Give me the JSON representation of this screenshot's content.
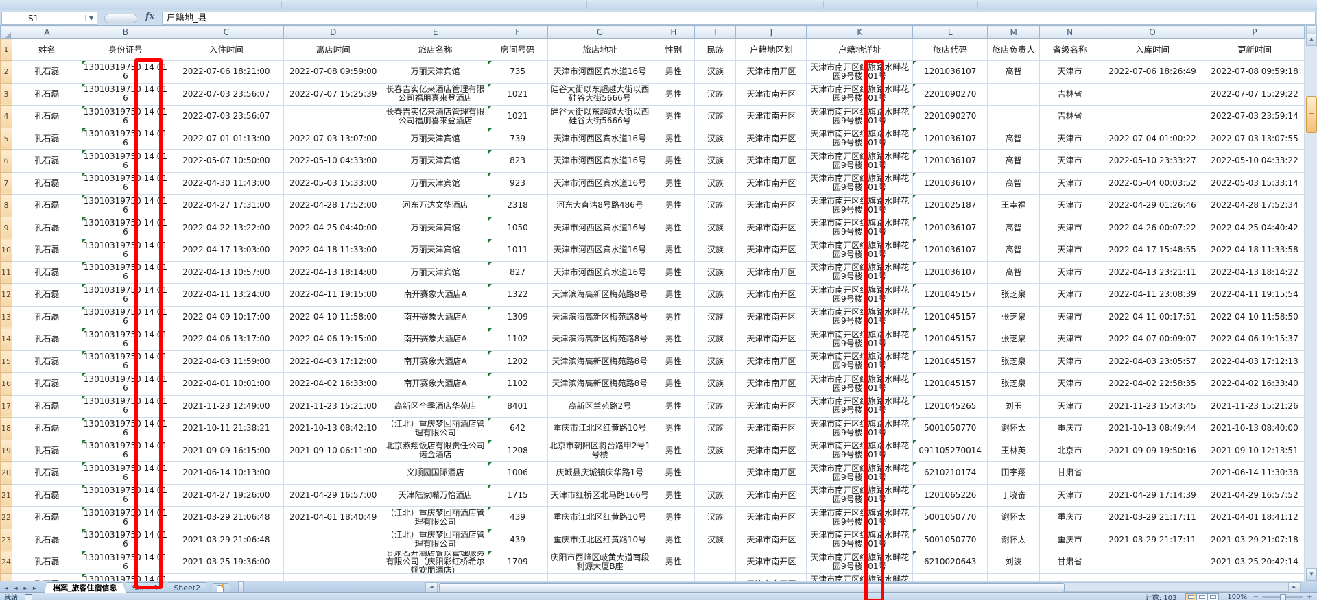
{
  "chrome": {
    "name_box": "S1",
    "fx_label": "fx",
    "formula_value": "户籍地_县"
  },
  "grid": {
    "column_letters": [
      "A",
      "B",
      "C",
      "D",
      "E",
      "F",
      "G",
      "H",
      "I",
      "J",
      "K",
      "L",
      "M",
      "N",
      "O",
      "P"
    ],
    "field_headers": [
      "姓名",
      "身份证号",
      "入住时间",
      "离店时间",
      "旅店名称",
      "房间号码",
      "旅店地址",
      "性别",
      "民族",
      "户籍地区划",
      "户籍地详址",
      "旅店代码",
      "旅店负责人",
      "省级名称",
      "入库时间",
      "更新时间"
    ],
    "first_data_row_number": 2,
    "error_indicator_columns": [
      1,
      5,
      11
    ],
    "rows": [
      [
        "孔石磊",
        "13010319750 14 016",
        "2022-07-06 18:21:00",
        "2022-07-08 09:59:00",
        "万丽天津宾馆",
        "735",
        "天津市河西区宾水道16号",
        "男性",
        "汉族",
        "天津市南开区",
        "天津市南开区红旗路水畔花园9号楼101号",
        "1201036107",
        "高智",
        "天津市",
        "2022-07-06 18:26:49",
        "2022-07-08 09:59:18"
      ],
      [
        "孔石磊",
        "13010319750 14 016",
        "2022-07-03 23:56:07",
        "2022-07-07 15:25:39",
        "长春吉实亿来酒店管理有限公司福朋喜来登酒店",
        "1021",
        "硅谷大街以东超越大街以西硅谷大街5666号",
        "男性",
        "汉族",
        "天津市南开区",
        "天津市南开区红旗路水畔花园9号楼101号",
        "2201090270",
        "",
        "吉林省",
        "",
        "2022-07-07 15:29:22"
      ],
      [
        "孔石磊",
        "13010319750 14 016",
        "2022-07-03 23:56:07",
        "",
        "长春吉实亿来酒店管理有限公司福朋喜来登酒店",
        "1021",
        "硅谷大街以东超越大街以西硅谷大街5666号",
        "男性",
        "汉族",
        "天津市南开区",
        "天津市南开区红旗路水畔花园9号楼101号",
        "2201090270",
        "",
        "吉林省",
        "",
        "2022-07-03 23:59:14"
      ],
      [
        "孔石磊",
        "13010319750 14 016",
        "2022-07-01 01:13:00",
        "2022-07-03 13:07:00",
        "万丽天津宾馆",
        "739",
        "天津市河西区宾水道16号",
        "男性",
        "汉族",
        "天津市南开区",
        "天津市南开区红旗路水畔花园9号楼101号",
        "1201036107",
        "高智",
        "天津市",
        "2022-07-04 01:00:22",
        "2022-07-03 13:07:55"
      ],
      [
        "孔石磊",
        "13010319750 14 016",
        "2022-05-07 10:50:00",
        "2022-05-10 04:33:00",
        "万丽天津宾馆",
        "823",
        "天津市河西区宾水道16号",
        "男性",
        "汉族",
        "天津市南开区",
        "天津市南开区红旗路水畔花园9号楼101号",
        "1201036107",
        "高智",
        "天津市",
        "2022-05-10 23:33:27",
        "2022-05-10 04:33:22"
      ],
      [
        "孔石磊",
        "13010319750 14 016",
        "2022-04-30 11:43:00",
        "2022-05-03 15:33:00",
        "万丽天津宾馆",
        "923",
        "天津市河西区宾水道16号",
        "男性",
        "汉族",
        "天津市南开区",
        "天津市南开区红旗路水畔花园9号楼101号",
        "1201036107",
        "高智",
        "天津市",
        "2022-05-04 00:03:52",
        "2022-05-03 15:33:14"
      ],
      [
        "孔石磊",
        "13010319750 14 016",
        "2022-04-27 17:31:00",
        "2022-04-28 17:52:00",
        "河东万达文华酒店",
        "2318",
        "河东大直沽8号路486号",
        "男性",
        "汉族",
        "天津市南开区",
        "天津市南开区红旗路水畔花园9号楼101号",
        "1201025187",
        "王幸福",
        "天津市",
        "2022-04-29 01:26:46",
        "2022-04-28 17:52:34"
      ],
      [
        "孔石磊",
        "13010319750 14 016",
        "2022-04-22 13:22:00",
        "2022-04-25 04:40:00",
        "万丽天津宾馆",
        "1050",
        "天津市河西区宾水道16号",
        "男性",
        "汉族",
        "天津市南开区",
        "天津市南开区红旗路水畔花园9号楼101号",
        "1201036107",
        "高智",
        "天津市",
        "2022-04-26 00:07:22",
        "2022-04-25 04:40:42"
      ],
      [
        "孔石磊",
        "13010319750 14 016",
        "2022-04-17 13:03:00",
        "2022-04-18 11:33:00",
        "万丽天津宾馆",
        "1011",
        "天津市河西区宾水道16号",
        "男性",
        "汉族",
        "天津市南开区",
        "天津市南开区红旗路水畔花园9号楼101号",
        "1201036107",
        "高智",
        "天津市",
        "2022-04-17 15:48:55",
        "2022-04-18 11:33:58"
      ],
      [
        "孔石磊",
        "13010319750 14 016",
        "2022-04-13 10:57:00",
        "2022-04-13 18:14:00",
        "万丽天津宾馆",
        "827",
        "天津市河西区宾水道16号",
        "男性",
        "汉族",
        "天津市南开区",
        "天津市南开区红旗路水畔花园9号楼101号",
        "1201036107",
        "高智",
        "天津市",
        "2022-04-13 23:21:11",
        "2022-04-13 18:14:22"
      ],
      [
        "孔石磊",
        "13010319750 14 016",
        "2022-04-11 13:24:00",
        "2022-04-11 19:15:00",
        "南开赛象大酒店A",
        "1322",
        "天津滨海高新区梅苑路8号",
        "男性",
        "汉族",
        "天津市南开区",
        "天津市南开区红旗路水畔花园9号楼101号",
        "1201045157",
        "张芝泉",
        "天津市",
        "2022-04-11 23:08:39",
        "2022-04-11 19:15:54"
      ],
      [
        "孔石磊",
        "13010319750 14 016",
        "2022-04-09 10:17:00",
        "2022-04-10 11:58:00",
        "南开赛象大酒店A",
        "1309",
        "天津滨海高新区梅苑路8号",
        "男性",
        "汉族",
        "天津市南开区",
        "天津市南开区红旗路水畔花园9号楼101号",
        "1201045157",
        "张芝泉",
        "天津市",
        "2022-04-11 00:17:51",
        "2022-04-10 11:58:50"
      ],
      [
        "孔石磊",
        "13010319750 14 016",
        "2022-04-06 13:17:00",
        "2022-04-06 19:15:00",
        "南开赛象大酒店A",
        "1102",
        "天津滨海高新区梅苑路8号",
        "男性",
        "汉族",
        "天津市南开区",
        "天津市南开区红旗路水畔花园9号楼101号",
        "1201045157",
        "张芝泉",
        "天津市",
        "2022-04-07 00:09:07",
        "2022-04-06 19:15:37"
      ],
      [
        "孔石磊",
        "13010319750 14 016",
        "2022-04-03 11:59:00",
        "2022-04-03 17:12:00",
        "南开赛象大酒店A",
        "1202",
        "天津滨海高新区梅苑路8号",
        "男性",
        "汉族",
        "天津市南开区",
        "天津市南开区红旗路水畔花园9号楼101号",
        "1201045157",
        "张芝泉",
        "天津市",
        "2022-04-03 23:05:57",
        "2022-04-03 17:12:13"
      ],
      [
        "孔石磊",
        "13010319750 14 016",
        "2022-04-01 10:01:00",
        "2022-04-02 16:33:00",
        "南开赛象大酒店A",
        "1102",
        "天津滨海高新区梅苑路8号",
        "男性",
        "汉族",
        "天津市南开区",
        "天津市南开区红旗路水畔花园9号楼101号",
        "1201045157",
        "张芝泉",
        "天津市",
        "2022-04-02 22:58:35",
        "2022-04-02 16:33:40"
      ],
      [
        "孔石磊",
        "13010319750 14 016",
        "2021-11-23 12:49:00",
        "2021-11-23 15:21:00",
        "高新区全季酒店华苑店",
        "8401",
        "高新区兰苑路2号",
        "男性",
        "汉族",
        "天津市南开区",
        "天津市南开区红旗路水畔花园9号楼101号",
        "1201045265",
        "刘玉",
        "天津市",
        "2021-11-23 15:43:45",
        "2021-11-23 15:21:26"
      ],
      [
        "孔石磊",
        "13010319750 14 016",
        "2021-10-11 21:38:21",
        "2021-10-13 08:42:10",
        "（江北）重庆梦回丽酒店管理有限公司",
        "642",
        "重庆市江北区红黄路10号",
        "男性",
        "汉族",
        "天津市南开区",
        "天津市南开区红旗路水畔花园9号楼101号",
        "5001050770",
        "谢怀太",
        "重庆市",
        "2021-10-13 08:49:44",
        "2021-10-13 08:40:00"
      ],
      [
        "孔石磊",
        "13010319750 14 016",
        "2021-09-09 16:15:00",
        "2021-09-10 06:11:00",
        "北京燕翔饭店有限责任公司诺金酒店",
        "1208",
        "北京市朝阳区将台路甲2号1号楼",
        "男性",
        "汉族",
        "天津市南开区",
        "天津市南开区红旗路水畔花园9号楼101号",
        "091105270014",
        "王林英",
        "北京市",
        "2021-09-09 19:50:16",
        "2021-09-10 12:13:51"
      ],
      [
        "孔石磊",
        "13010319750 14 016",
        "2021-06-14 10:13:00",
        "",
        "义顺园国际酒店",
        "1006",
        "庆城县庆城镇庆华路1号",
        "男性",
        "",
        "天津市南开区",
        "天津市南开区红旗路水畔花园9号楼101号",
        "6210210174",
        "田宇翔",
        "甘肃省",
        "",
        "2021-06-14 11:30:38"
      ],
      [
        "孔石磊",
        "13010319750 14 016",
        "2021-04-27 19:26:00",
        "2021-04-29 16:57:00",
        "天津陆家嘴万怡酒店",
        "1715",
        "天津市红桥区北马路166号",
        "男性",
        "汉族",
        "天津市南开区",
        "天津市南开区红旗路水畔花园9号楼101号",
        "1201065226",
        "丁晓奋",
        "天津市",
        "2021-04-29 17:14:39",
        "2021-04-29 16:57:52"
      ],
      [
        "孔石磊",
        "13010319750 14 016",
        "2021-03-29 21:06:48",
        "2021-04-01 18:40:49",
        "（江北）重庆梦回丽酒店管理有限公司",
        "439",
        "重庆市江北区红黄路10号",
        "男性",
        "汉族",
        "天津市南开区",
        "天津市南开区红旗路水畔花园9号楼101号",
        "5001050770",
        "谢怀太",
        "重庆市",
        "2021-03-29 21:17:11",
        "2021-04-01 18:41:12"
      ],
      [
        "孔石磊",
        "13010319750 14 016",
        "2021-03-29 21:06:48",
        "",
        "（江北）重庆梦回丽酒店管理有限公司",
        "439",
        "重庆市江北区红黄路10号",
        "男性",
        "汉族",
        "天津市南开区",
        "天津市南开区红旗路水畔花园9号楼101号",
        "5001050770",
        "谢怀太",
        "重庆市",
        "2021-03-29 21:17:11",
        "2021-03-29 21:07:18"
      ],
      [
        "孔石磊",
        "13010319750 14 016",
        "2021-03-25 19:36:00",
        "",
        "甘肃名开酒店餐饮管理服务有限公司（庆阳彩虹桥希尔顿欢朋酒店）",
        "1709",
        "庆阳市西峰区岐黄大道南段利源大厦B座",
        "男性",
        "",
        "天津市南开区",
        "天津市南开区红旗路水畔花园9号楼101号",
        "6210020643",
        "刘波",
        "甘肃省",
        "",
        "2021-03-25 20:42:14"
      ]
    ],
    "partial_row": [
      "孔石磊",
      "13010319750 14 016",
      "",
      "",
      "",
      "",
      "",
      "",
      "",
      "天津市南开区",
      "天津市南开区红旗路水畔花园9号楼101号",
      "",
      "",
      "",
      "",
      ""
    ]
  },
  "annotations": {
    "highlight_color": "#FF0000",
    "highlighted_regions": [
      "身份证号中段数字",
      "户籍地详址门牌数字"
    ]
  },
  "sheet_bar": {
    "tabs": [
      {
        "label": "档案_旅客住宿信息",
        "active": true
      },
      {
        "label": "Sheet1",
        "active": false
      },
      {
        "label": "Sheet2",
        "active": false
      }
    ]
  },
  "status_bar": {
    "mode": "就绪",
    "count_label": "计数: 103",
    "zoom_level": "100%"
  }
}
